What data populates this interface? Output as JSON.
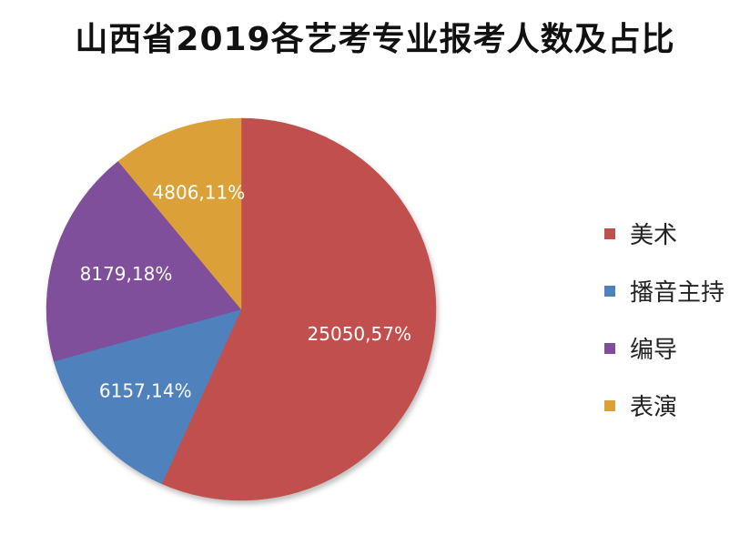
{
  "chart_data": {
    "type": "pie",
    "title": "山西省2019各艺考专业报考人数及占比",
    "categories": [
      "美术",
      "播音主持",
      "编导",
      "表演"
    ],
    "values": [
      25050,
      6157,
      8179,
      4806
    ],
    "percents": [
      57,
      14,
      18,
      11
    ],
    "data_labels": [
      "25050,57%",
      "6157,14%",
      "8179,18%",
      "4806,11%"
    ],
    "colors": [
      "#C0504D",
      "#4F81BD",
      "#7F4F9B",
      "#DBA138"
    ],
    "legend_position": "right"
  }
}
